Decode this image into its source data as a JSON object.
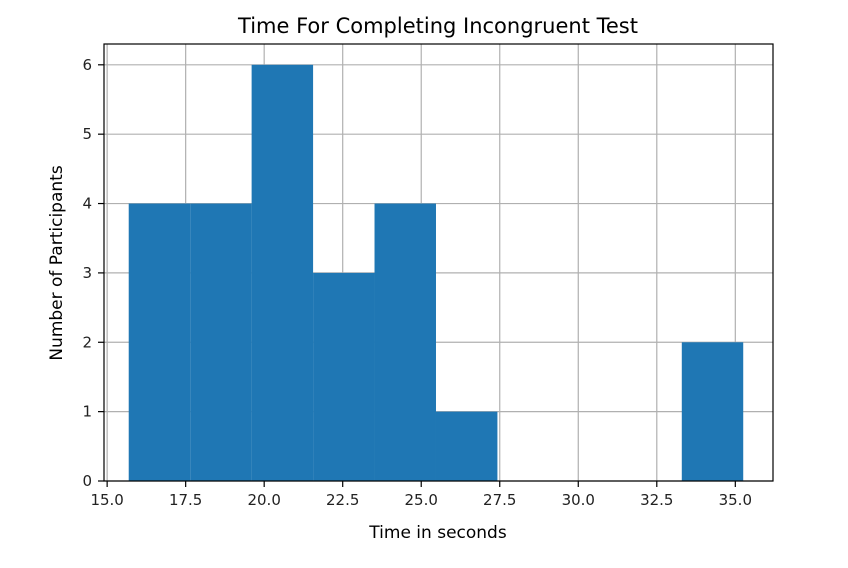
{
  "chart_data": {
    "type": "bar",
    "title": "Time For Completing Incongruent Test",
    "xlabel": "Time in seconds",
    "ylabel": "Number of Participants",
    "xlim": [
      14.9,
      36.2
    ],
    "ylim": [
      0,
      6.3
    ],
    "grid": true,
    "bin_edges": [
      15.687,
      17.644,
      19.6,
      21.557,
      23.513,
      25.47,
      27.426,
      29.383,
      31.339,
      33.296,
      35.252
    ],
    "values": [
      4,
      4,
      6,
      3,
      4,
      1,
      0,
      0,
      0,
      2
    ],
    "x_ticks": [
      "15.0",
      "17.5",
      "20.0",
      "22.5",
      "25.0",
      "27.5",
      "30.0",
      "32.5",
      "35.0"
    ],
    "y_ticks": [
      "0",
      "1",
      "2",
      "3",
      "4",
      "5",
      "6"
    ],
    "colors": {
      "bar": "#1f77b4",
      "grid": "#b0b0b0"
    }
  }
}
